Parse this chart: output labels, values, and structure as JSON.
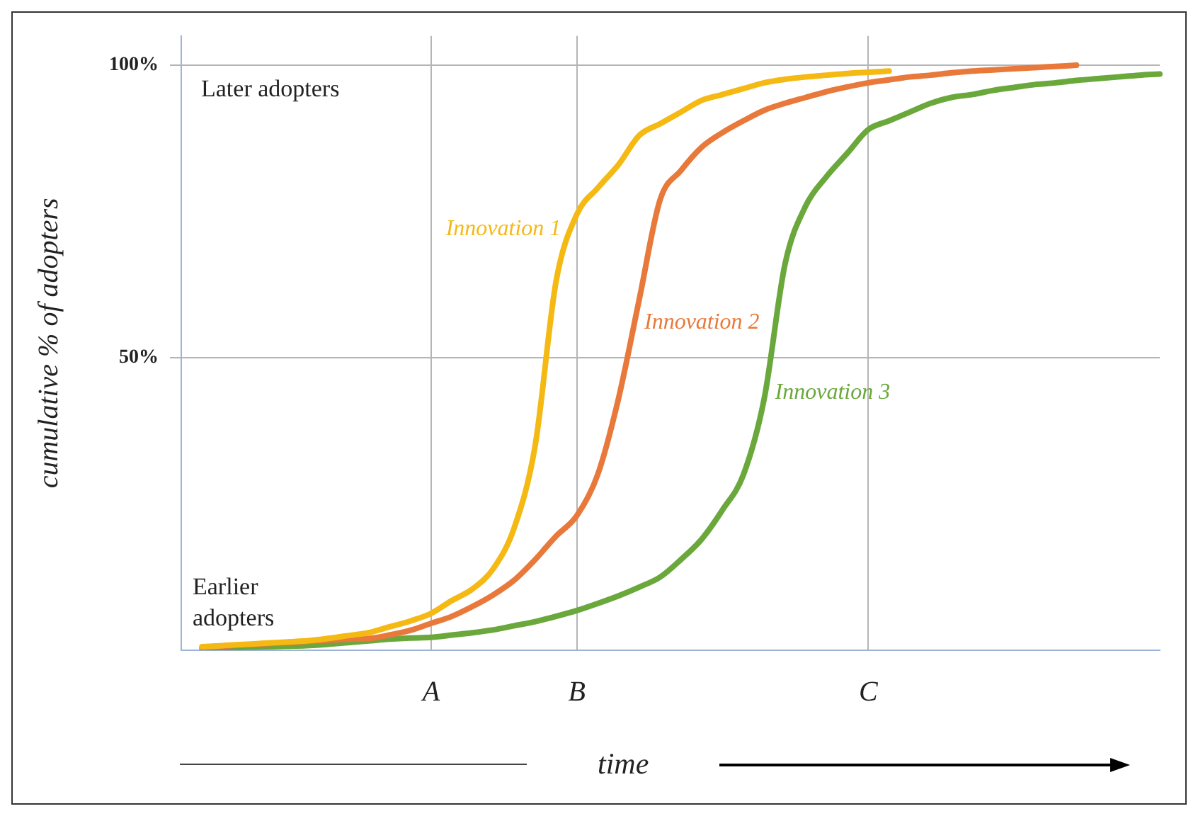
{
  "chart_data": {
    "type": "line",
    "xlabel": "time",
    "ylabel": "cumulative % of adopters",
    "annotations": [
      "Later adopters",
      "Earlier adopters"
    ],
    "categories": [
      null,
      null,
      null,
      null,
      null,
      null,
      null,
      null,
      null,
      null,
      null,
      null,
      "A",
      null,
      null,
      null,
      null,
      null,
      null,
      "B",
      null,
      null,
      null,
      null,
      null,
      null,
      null,
      null,
      null,
      null,
      null,
      null,
      null,
      "C",
      null,
      null,
      null,
      null,
      null,
      null,
      null,
      null,
      null,
      null,
      null,
      null,
      null,
      null
    ],
    "series": [
      {
        "name": "Innovation 1",
        "color": "#f5b914",
        "values": [
          null,
          0.6,
          0.8,
          1,
          1.2,
          1.4,
          1.6,
          2,
          2.5,
          3,
          4,
          5,
          6.3,
          8.5,
          10.5,
          14,
          21,
          35,
          63,
          74.5,
          79,
          83,
          88,
          90,
          92,
          94,
          95,
          96,
          97,
          97.6,
          98,
          98.3,
          98.6,
          98.8,
          99,
          null,
          null,
          null,
          null,
          null,
          null,
          null,
          null,
          null,
          null,
          null,
          null,
          null
        ]
      },
      {
        "name": "Innovation 2",
        "color": "#e8793a",
        "values": [
          null,
          0.5,
          0.7,
          0.9,
          1.1,
          1.3,
          1.5,
          1.7,
          1.9,
          2,
          2.6,
          3.4,
          4.6,
          5.8,
          7.5,
          9.5,
          12,
          15.5,
          19.5,
          23,
          30,
          43,
          60,
          77,
          82,
          86,
          88.5,
          90.5,
          92.3,
          93.5,
          94.5,
          95.5,
          96.3,
          97,
          97.5,
          98,
          98.3,
          98.7,
          99,
          99.2,
          99.4,
          99.6,
          99.8,
          100,
          null,
          null,
          null,
          null
        ]
      },
      {
        "name": "Innovation 3",
        "color": "#6aa83c",
        "values": [
          null,
          0.3,
          0.4,
          0.5,
          0.6,
          0.7,
          0.8,
          1,
          1.3,
          1.6,
          1.9,
          2.1,
          2.2,
          2.6,
          3,
          3.5,
          4.2,
          4.9,
          5.8,
          6.8,
          8,
          9.3,
          10.8,
          12.5,
          15.5,
          19,
          24,
          30,
          43,
          66,
          76,
          81,
          85,
          89,
          90.5,
          92,
          93.5,
          94.5,
          95,
          95.7,
          96.2,
          96.7,
          97,
          97.4,
          97.7,
          98,
          98.3,
          98.5
        ]
      }
    ],
    "ylim": [
      0,
      105
    ],
    "yticks": [
      {
        "value": 50,
        "label": "50%"
      },
      {
        "value": 100,
        "label": "100%"
      }
    ],
    "grid": true,
    "legend": false,
    "marker": "none",
    "line_style": "solid"
  }
}
